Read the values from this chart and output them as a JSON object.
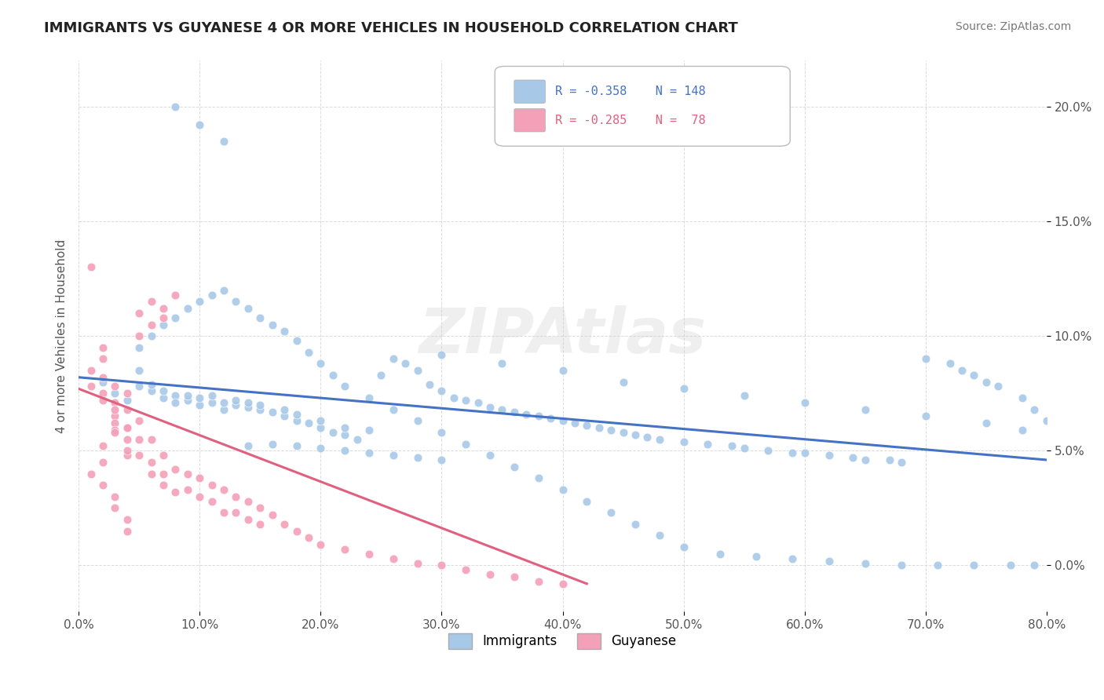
{
  "title": "IMMIGRANTS VS GUYANESE 4 OR MORE VEHICLES IN HOUSEHOLD CORRELATION CHART",
  "source_text": "Source: ZipAtlas.com",
  "ylabel": "4 or more Vehicles in Household",
  "watermark": "ZIPAtlas",
  "x_min": 0.0,
  "x_max": 0.8,
  "y_min": -0.02,
  "y_max": 0.22,
  "x_ticks": [
    0.0,
    0.1,
    0.2,
    0.3,
    0.4,
    0.5,
    0.6,
    0.7,
    0.8
  ],
  "x_tick_labels": [
    "0.0%",
    "10.0%",
    "20.0%",
    "30.0%",
    "40.0%",
    "50.0%",
    "60.0%",
    "70.0%",
    "80.0%"
  ],
  "y_ticks": [
    0.0,
    0.05,
    0.1,
    0.15,
    0.2
  ],
  "y_tick_labels": [
    "0.0%",
    "5.0%",
    "10.0%",
    "15.0%",
    "20.0%"
  ],
  "immigrants_color": "#a8c8e8",
  "guyanese_color": "#f4a0b8",
  "immigrants_line_color": "#4472c4",
  "guyanese_line_color": "#e06080",
  "background_color": "#ffffff",
  "grid_color": "#cccccc",
  "immigrants_x": [
    0.02,
    0.03,
    0.04,
    0.05,
    0.05,
    0.06,
    0.06,
    0.07,
    0.07,
    0.08,
    0.08,
    0.09,
    0.09,
    0.1,
    0.1,
    0.11,
    0.11,
    0.12,
    0.12,
    0.13,
    0.13,
    0.14,
    0.14,
    0.15,
    0.15,
    0.16,
    0.17,
    0.17,
    0.18,
    0.18,
    0.19,
    0.2,
    0.2,
    0.21,
    0.22,
    0.22,
    0.23,
    0.24,
    0.25,
    0.26,
    0.27,
    0.28,
    0.29,
    0.3,
    0.31,
    0.32,
    0.33,
    0.34,
    0.35,
    0.36,
    0.37,
    0.38,
    0.39,
    0.4,
    0.41,
    0.42,
    0.43,
    0.44,
    0.45,
    0.46,
    0.47,
    0.48,
    0.5,
    0.52,
    0.54,
    0.55,
    0.57,
    0.59,
    0.6,
    0.62,
    0.64,
    0.65,
    0.67,
    0.68,
    0.7,
    0.72,
    0.73,
    0.74,
    0.75,
    0.76,
    0.78,
    0.79,
    0.8,
    0.05,
    0.06,
    0.07,
    0.08,
    0.09,
    0.1,
    0.11,
    0.12,
    0.13,
    0.14,
    0.15,
    0.16,
    0.17,
    0.18,
    0.19,
    0.2,
    0.21,
    0.22,
    0.24,
    0.26,
    0.28,
    0.3,
    0.32,
    0.34,
    0.36,
    0.38,
    0.4,
    0.42,
    0.44,
    0.46,
    0.48,
    0.5,
    0.53,
    0.56,
    0.59,
    0.62,
    0.65,
    0.68,
    0.71,
    0.74,
    0.77,
    0.79,
    0.3,
    0.35,
    0.4,
    0.45,
    0.5,
    0.55,
    0.6,
    0.65,
    0.7,
    0.75,
    0.78,
    0.08,
    0.1,
    0.12,
    0.14,
    0.16,
    0.18,
    0.2,
    0.22,
    0.24,
    0.26,
    0.28,
    0.3
  ],
  "immigrants_y": [
    0.08,
    0.075,
    0.072,
    0.085,
    0.078,
    0.076,
    0.079,
    0.073,
    0.076,
    0.074,
    0.071,
    0.072,
    0.074,
    0.07,
    0.073,
    0.071,
    0.074,
    0.068,
    0.071,
    0.07,
    0.072,
    0.069,
    0.071,
    0.068,
    0.07,
    0.067,
    0.065,
    0.068,
    0.063,
    0.066,
    0.062,
    0.06,
    0.063,
    0.058,
    0.057,
    0.06,
    0.055,
    0.059,
    0.083,
    0.09,
    0.088,
    0.085,
    0.079,
    0.076,
    0.073,
    0.072,
    0.071,
    0.069,
    0.068,
    0.067,
    0.066,
    0.065,
    0.064,
    0.063,
    0.062,
    0.061,
    0.06,
    0.059,
    0.058,
    0.057,
    0.056,
    0.055,
    0.054,
    0.053,
    0.052,
    0.051,
    0.05,
    0.049,
    0.049,
    0.048,
    0.047,
    0.046,
    0.046,
    0.045,
    0.09,
    0.088,
    0.085,
    0.083,
    0.08,
    0.078,
    0.073,
    0.068,
    0.063,
    0.095,
    0.1,
    0.105,
    0.108,
    0.112,
    0.115,
    0.118,
    0.12,
    0.115,
    0.112,
    0.108,
    0.105,
    0.102,
    0.098,
    0.093,
    0.088,
    0.083,
    0.078,
    0.073,
    0.068,
    0.063,
    0.058,
    0.053,
    0.048,
    0.043,
    0.038,
    0.033,
    0.028,
    0.023,
    0.018,
    0.013,
    0.008,
    0.005,
    0.004,
    0.003,
    0.002,
    0.001,
    0.0,
    0.0,
    0.0,
    0.0,
    0.0,
    0.092,
    0.088,
    0.085,
    0.08,
    0.077,
    0.074,
    0.071,
    0.068,
    0.065,
    0.062,
    0.059,
    0.2,
    0.192,
    0.185,
    0.052,
    0.053,
    0.052,
    0.051,
    0.05,
    0.049,
    0.048,
    0.047,
    0.046
  ],
  "guyanese_x": [
    0.01,
    0.01,
    0.01,
    0.02,
    0.02,
    0.02,
    0.02,
    0.02,
    0.03,
    0.03,
    0.03,
    0.03,
    0.03,
    0.04,
    0.04,
    0.04,
    0.04,
    0.04,
    0.05,
    0.05,
    0.05,
    0.06,
    0.06,
    0.06,
    0.07,
    0.07,
    0.07,
    0.08,
    0.08,
    0.09,
    0.09,
    0.1,
    0.1,
    0.11,
    0.11,
    0.12,
    0.12,
    0.13,
    0.13,
    0.14,
    0.14,
    0.15,
    0.15,
    0.16,
    0.17,
    0.18,
    0.19,
    0.2,
    0.22,
    0.24,
    0.26,
    0.28,
    0.3,
    0.32,
    0.34,
    0.36,
    0.38,
    0.4,
    0.02,
    0.02,
    0.03,
    0.03,
    0.04,
    0.04,
    0.05,
    0.05,
    0.06,
    0.06,
    0.07,
    0.07,
    0.08,
    0.01,
    0.02,
    0.03,
    0.03,
    0.04,
    0.04
  ],
  "guyanese_y": [
    0.13,
    0.085,
    0.078,
    0.095,
    0.09,
    0.082,
    0.075,
    0.072,
    0.078,
    0.071,
    0.065,
    0.062,
    0.059,
    0.075,
    0.068,
    0.06,
    0.055,
    0.048,
    0.063,
    0.055,
    0.048,
    0.055,
    0.045,
    0.04,
    0.048,
    0.04,
    0.035,
    0.042,
    0.032,
    0.04,
    0.033,
    0.038,
    0.03,
    0.035,
    0.028,
    0.033,
    0.023,
    0.03,
    0.023,
    0.028,
    0.02,
    0.025,
    0.018,
    0.022,
    0.018,
    0.015,
    0.012,
    0.009,
    0.007,
    0.005,
    0.003,
    0.001,
    0.0,
    -0.002,
    -0.004,
    -0.005,
    -0.007,
    -0.008,
    0.052,
    0.045,
    0.068,
    0.058,
    0.06,
    0.05,
    0.1,
    0.11,
    0.105,
    0.115,
    0.108,
    0.112,
    0.118,
    0.04,
    0.035,
    0.03,
    0.025,
    0.02,
    0.015
  ],
  "immigrants_trend_x": [
    0.0,
    0.8
  ],
  "immigrants_trend_y": [
    0.082,
    0.046
  ],
  "guyanese_trend_x": [
    0.0,
    0.42
  ],
  "guyanese_trend_y": [
    0.077,
    -0.008
  ]
}
